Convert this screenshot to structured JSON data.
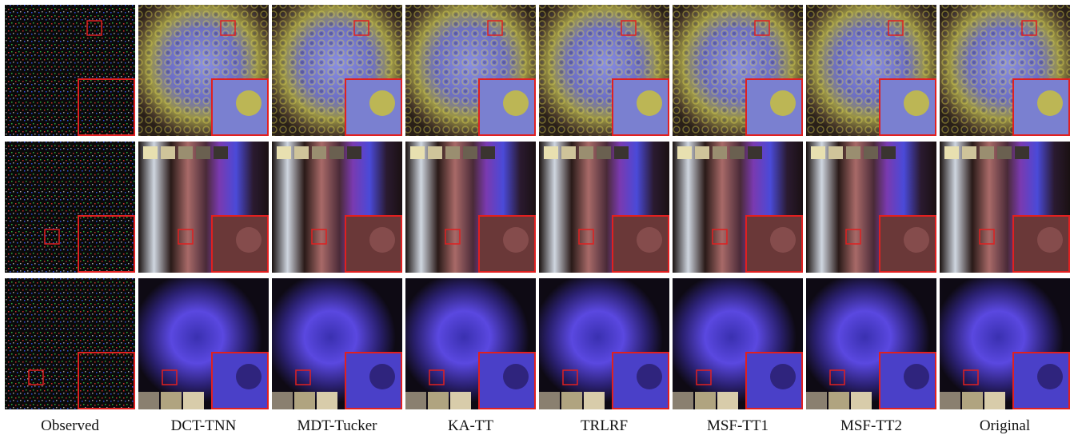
{
  "columns": [
    "Observed",
    "DCT-TNN",
    "MDT-Tucker",
    "KA-TT",
    "TRLRF",
    "MSF-TT1",
    "MSF-TT2",
    "Original"
  ]
}
